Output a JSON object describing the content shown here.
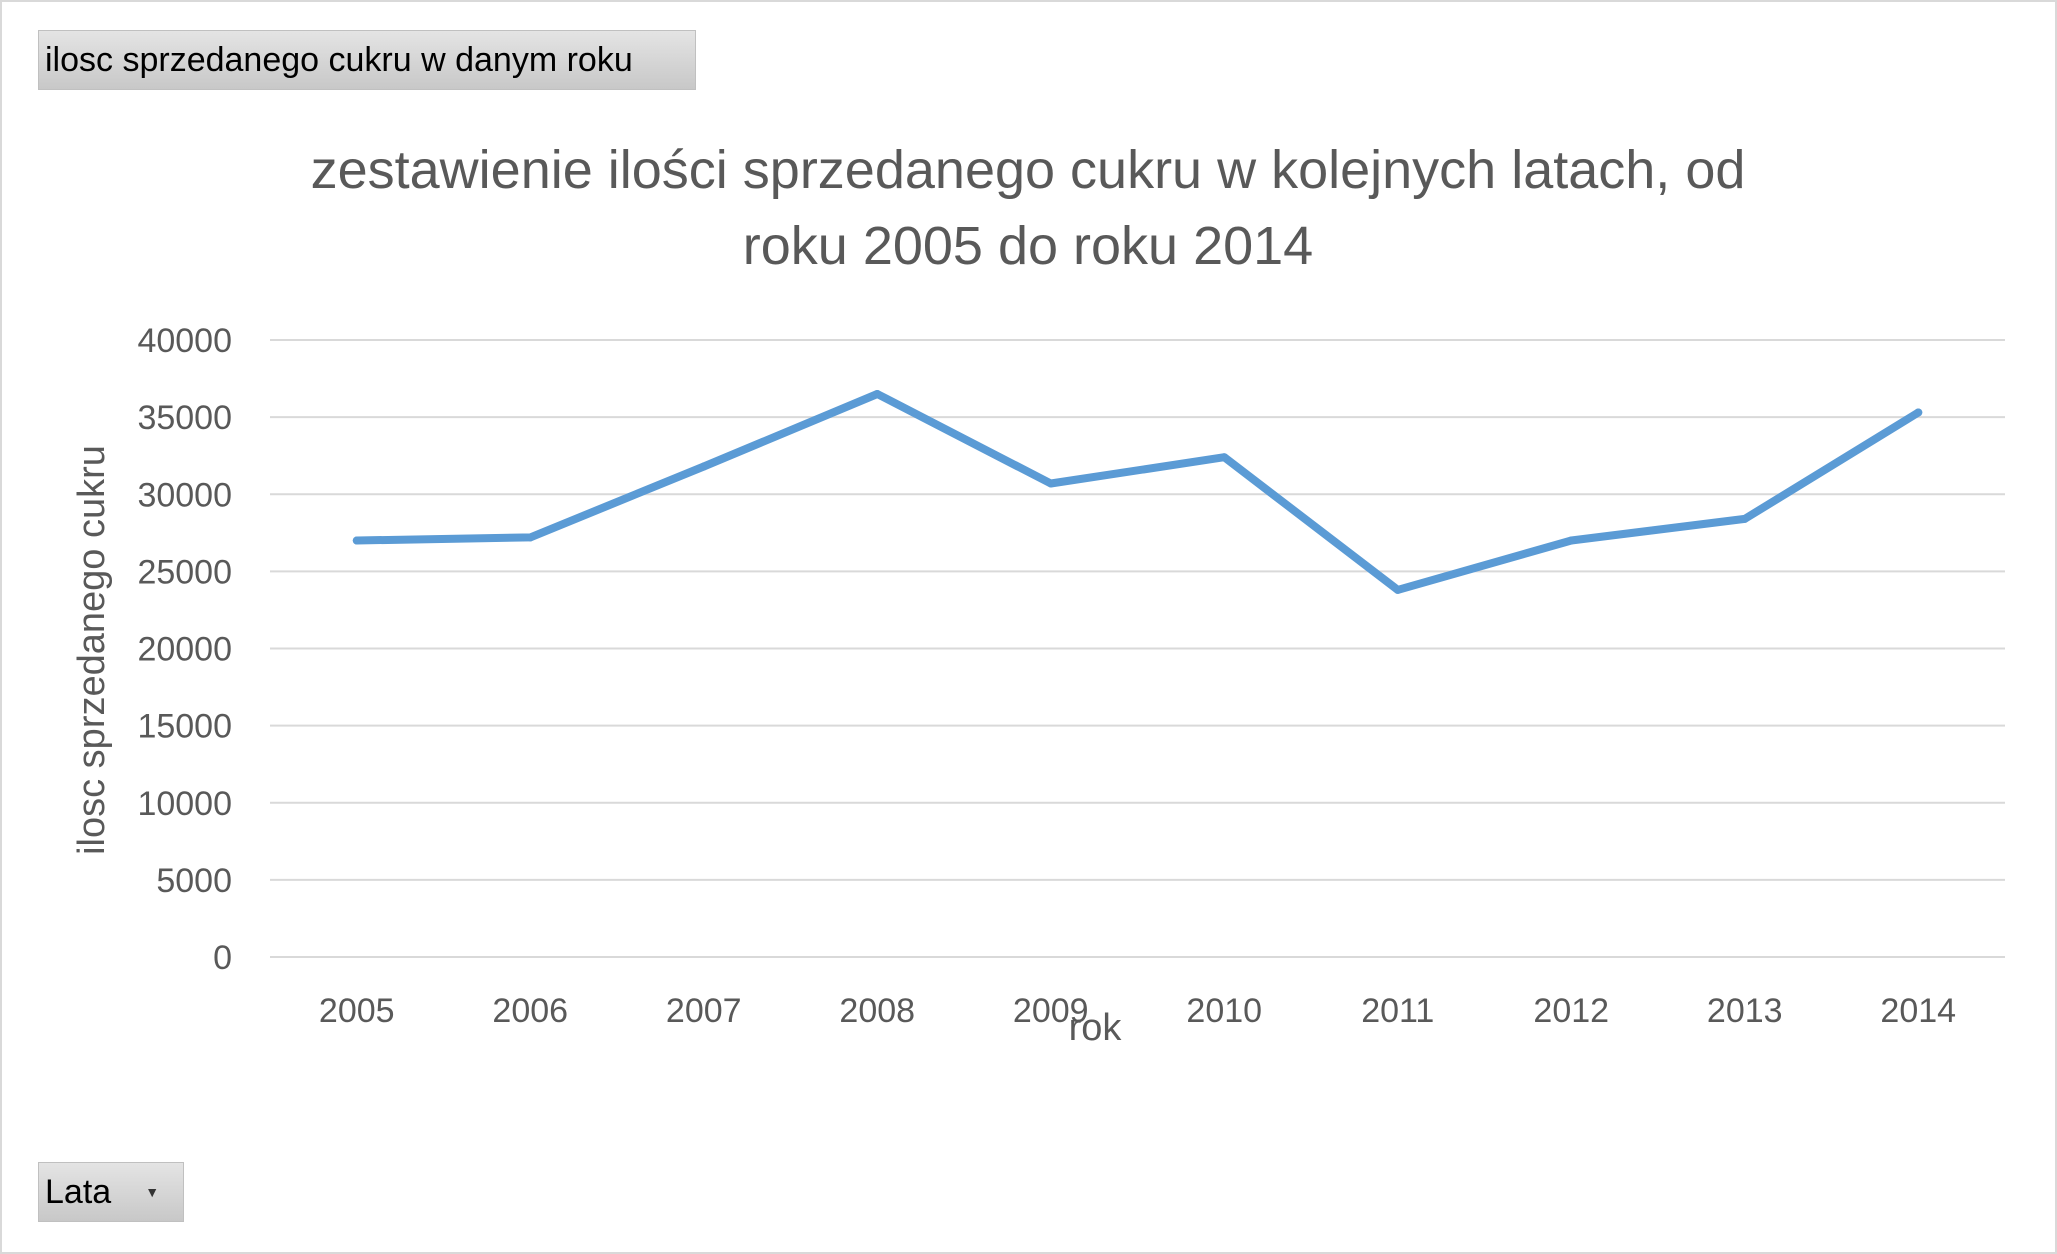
{
  "field_buttons": {
    "value_field": "ilosc sprzedanego cukru w danym roku",
    "axis_field": "Lata",
    "axis_field_icon": "dropdown-arrow-icon"
  },
  "chart_data": {
    "type": "line",
    "title_lines": [
      "zestawienie ilości sprzedanego cukru w kolejnych latach, od",
      "roku 2005 do roku 2014"
    ],
    "xlabel": "rok",
    "ylabel": "ilosc sprzedanego cukru",
    "categories": [
      "2005",
      "2006",
      "2007",
      "2008",
      "2009",
      "2010",
      "2011",
      "2012",
      "2013",
      "2014"
    ],
    "series": [
      {
        "values": [
          27000,
          27200,
          31800,
          36500,
          30700,
          32400,
          23800,
          27000,
          28400,
          35300
        ],
        "color": "#5b9bd5"
      }
    ],
    "ylim": [
      0,
      40000
    ],
    "yticks": [
      0,
      5000,
      10000,
      15000,
      20000,
      25000,
      30000,
      35000,
      40000
    ],
    "grid": true,
    "legend": "none",
    "gridline_color": "#d9d9d9",
    "text_color": "#595959"
  }
}
